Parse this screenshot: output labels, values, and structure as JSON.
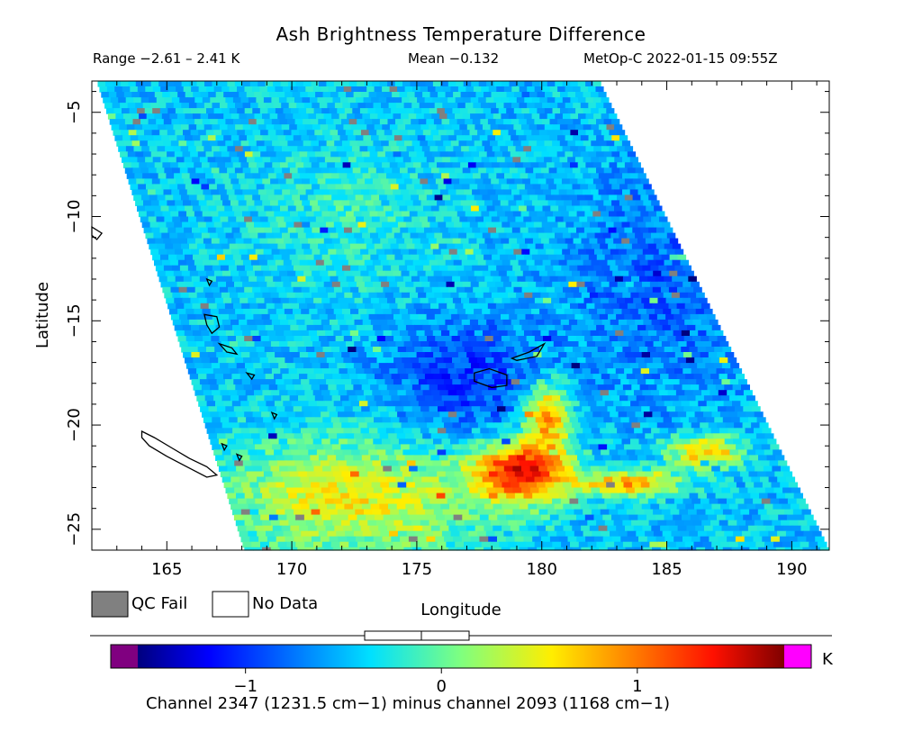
{
  "header": {
    "title": "Ash Brightness Temperature Difference",
    "range_label": "Range −2.61 – 2.41 K",
    "mean_label": "Mean −0.132",
    "satellite_time": "MetOp-C 2022-01-15 09:55Z"
  },
  "legend": {
    "qc_fail": "QC Fail",
    "no_data": "No Data",
    "colorbar_unit": "K",
    "footnote": "Channel 2347 (1231.5 cm−1) minus channel 2093 (1168 cm−1)"
  },
  "colors": {
    "qc_fail": "#808080",
    "no_data": "#ffffff",
    "under_range": "#800080",
    "over_range": "#ff00ff",
    "coastline": "#000000"
  },
  "chart_data": {
    "type": "heatmap",
    "title": "Ash Brightness Temperature Difference",
    "xlabel": "Longitude",
    "ylabel": "Latitude",
    "xlim": [
      162,
      191.5
    ],
    "ylim": [
      -26,
      -3.5
    ],
    "x_ticks": [
      165,
      170,
      175,
      180,
      185,
      190
    ],
    "y_ticks": [
      -5,
      -10,
      -15,
      -20,
      -25
    ],
    "value_range": [
      -2.61,
      2.41
    ],
    "mean": -0.132,
    "units": "K",
    "colorbar": {
      "vmin": -1.55,
      "vmax": 1.75,
      "ticks": [
        -1,
        0,
        1
      ],
      "tick_labels": [
        "−1",
        "0",
        "1"
      ]
    },
    "swath_lon_edges": {
      "west": [
        [
          -3.5,
          162.2
        ],
        [
          -26,
          168.1
        ]
      ],
      "east": [
        [
          -3.5,
          182.3
        ],
        [
          -26,
          191.5
        ]
      ]
    },
    "features": [
      {
        "name": "ash-plume-hunga-tonga",
        "lon": [
          178.5,
          186.5
        ],
        "lat": [
          -24,
          -18.5
        ],
        "value_max": 1.6
      },
      {
        "name": "warm-region-south",
        "lon": [
          168,
          180
        ],
        "lat": [
          -26,
          -20
        ],
        "value_mean": 0.5
      },
      {
        "name": "cool-region-center",
        "lon": [
          173,
          180
        ],
        "lat": [
          -21,
          -15
        ],
        "value_mean": -0.8
      }
    ],
    "coastlines": [
      {
        "name": "new-caledonia",
        "points": [
          [
            164.0,
            -20.3
          ],
          [
            164.5,
            -20.6
          ],
          [
            165.2,
            -21.1
          ],
          [
            165.9,
            -21.6
          ],
          [
            166.6,
            -22.0
          ],
          [
            167.0,
            -22.4
          ],
          [
            166.6,
            -22.5
          ],
          [
            165.8,
            -22.0
          ],
          [
            165.0,
            -21.5
          ],
          [
            164.3,
            -21.0
          ],
          [
            164.0,
            -20.6
          ]
        ]
      },
      {
        "name": "vanuatu-santo",
        "points": [
          [
            166.5,
            -14.7
          ],
          [
            167.0,
            -14.8
          ],
          [
            167.1,
            -15.3
          ],
          [
            166.8,
            -15.6
          ],
          [
            166.6,
            -15.2
          ]
        ]
      },
      {
        "name": "vanuatu-malekula",
        "points": [
          [
            167.1,
            -16.1
          ],
          [
            167.6,
            -16.3
          ],
          [
            167.8,
            -16.6
          ],
          [
            167.4,
            -16.5
          ]
        ]
      },
      {
        "name": "vanuatu-efate",
        "points": [
          [
            168.2,
            -17.5
          ],
          [
            168.5,
            -17.6
          ],
          [
            168.4,
            -17.8
          ]
        ]
      },
      {
        "name": "vanuatu-tanna",
        "points": [
          [
            169.2,
            -19.4
          ],
          [
            169.4,
            -19.5
          ],
          [
            169.3,
            -19.7
          ]
        ]
      },
      {
        "name": "fiji-viti-levu",
        "points": [
          [
            177.3,
            -17.5
          ],
          [
            177.9,
            -17.3
          ],
          [
            178.6,
            -17.6
          ],
          [
            178.6,
            -18.1
          ],
          [
            178.0,
            -18.2
          ],
          [
            177.3,
            -17.9
          ]
        ]
      },
      {
        "name": "fiji-vanua-levu",
        "points": [
          [
            178.8,
            -16.8
          ],
          [
            179.5,
            -16.5
          ],
          [
            180.1,
            -16.1
          ],
          [
            179.8,
            -16.7
          ],
          [
            179.0,
            -16.9
          ]
        ]
      },
      {
        "name": "loyalty-lifou",
        "points": [
          [
            167.2,
            -20.9
          ],
          [
            167.4,
            -21.0
          ],
          [
            167.3,
            -21.2
          ]
        ]
      },
      {
        "name": "loyalty-mare",
        "points": [
          [
            167.8,
            -21.4
          ],
          [
            168.0,
            -21.5
          ],
          [
            167.9,
            -21.7
          ]
        ]
      },
      {
        "name": "vanuatu-torres",
        "points": [
          [
            166.6,
            -13.0
          ],
          [
            166.8,
            -13.1
          ],
          [
            166.7,
            -13.3
          ]
        ]
      },
      {
        "name": "solomon-tip",
        "points": [
          [
            162.0,
            -10.5
          ],
          [
            162.4,
            -10.8
          ],
          [
            162.2,
            -11.1
          ],
          [
            162.0,
            -10.9
          ]
        ]
      }
    ]
  }
}
